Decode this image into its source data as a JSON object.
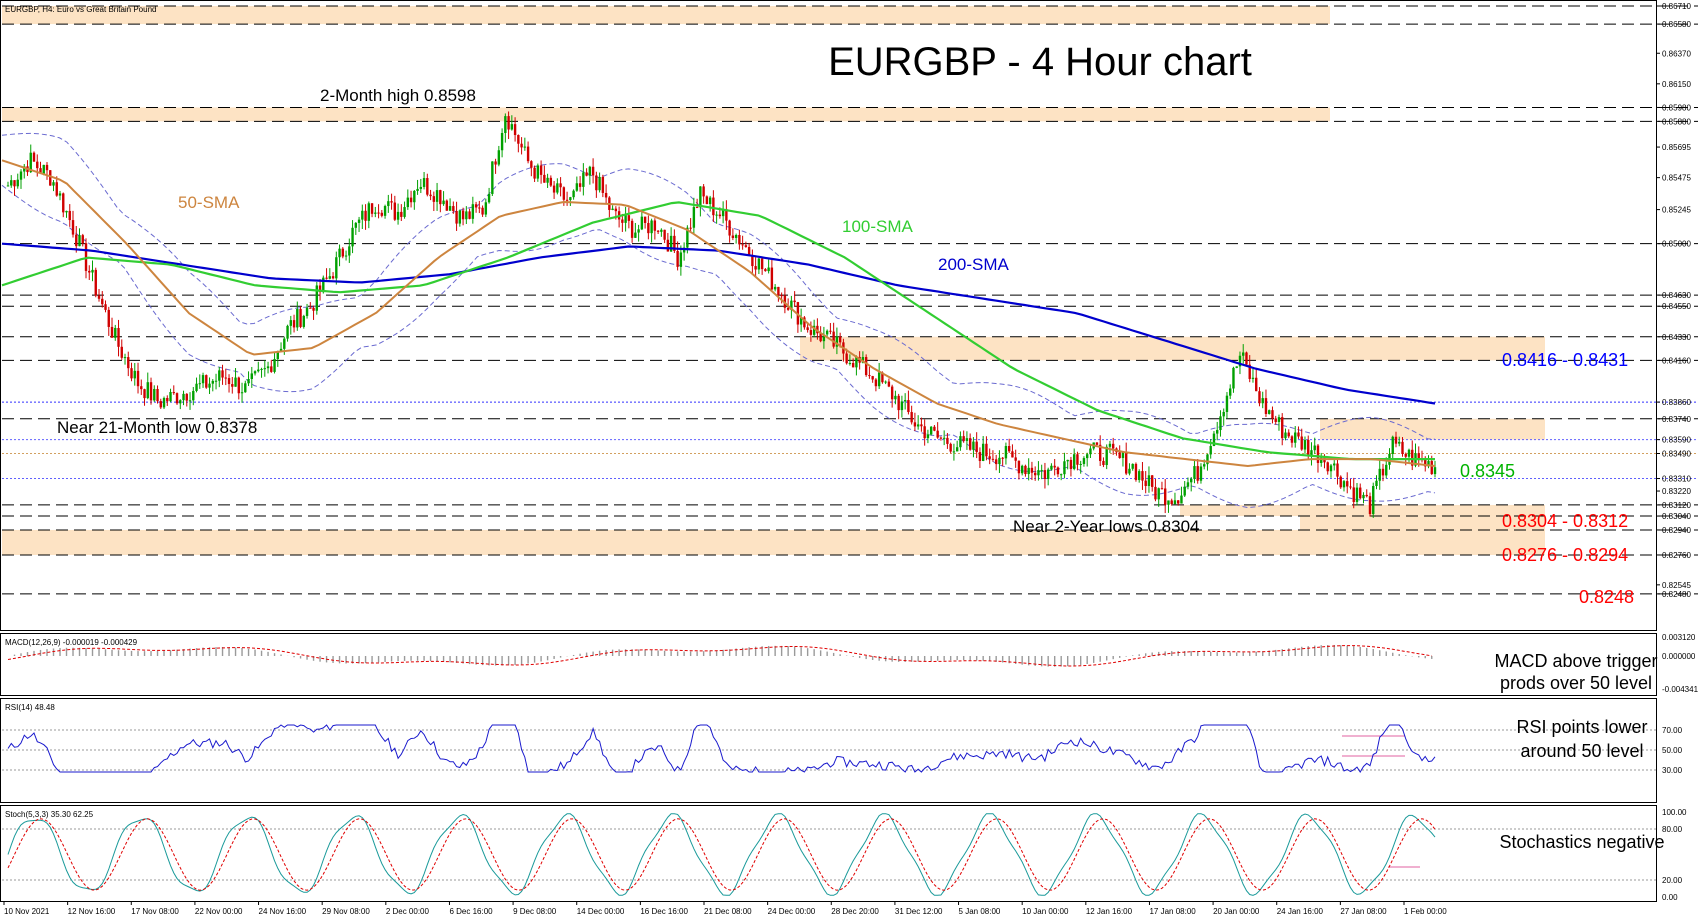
{
  "header": {
    "instrument_label": "EURGBP, H4:  Euro vs Great Britain Pound",
    "title": "EURGBP - 4 Hour chart"
  },
  "colors": {
    "zone_fill": "#fde3c4",
    "candle_up": "#00a000",
    "candle_down": "#d00000",
    "sma50": "#cd853f",
    "sma100": "#32cd32",
    "sma200": "#0000cd",
    "bollinger": "#6a6ad0",
    "accent_red": "#ff0000",
    "accent_blue": "#0000ff",
    "accent_green": "#00b300"
  },
  "annotations": {
    "high_label": "2-Month high 0.8598",
    "low21_label": "Near 21-Month low 0.8378",
    "low2y_label": "Near 2-Year lows 0.8304",
    "sma50_label": "50-SMA",
    "sma100_label": "100-SMA",
    "sma200_label": "200-SMA",
    "res_label": "0.8416 - 0.8431",
    "mid_label": "0.8345",
    "sup1_label": "0.8304 - 0.8312",
    "sup2_label": "0.8276 - 0.8294",
    "sup3_label": "0.8248"
  },
  "indicators": {
    "macd_label": "MACD(12,26,9) -0.000019 -0.000429",
    "macd_comment_1": "MACD above trigger",
    "macd_comment_2": "prods over 50 level",
    "rsi_label": "RSI(14) 48.48",
    "rsi_comment_1": "RSI points lower",
    "rsi_comment_2": "around 50 level",
    "stoch_label": "Stoch(5,3,3) 35.30 62.25",
    "stoch_comment": "Stochastics negative"
  },
  "price_axis": {
    "labels": [
      "0.86710",
      "0.86580",
      "0.86370",
      "0.86150",
      "0.85980",
      "0.85880",
      "0.85695",
      "0.85475",
      "0.85245",
      "0.85000",
      "0.84630",
      "0.84550",
      "0.84330",
      "0.84160",
      "0.83860",
      "0.83740",
      "0.83590",
      "0.83490",
      "0.83310",
      "0.83220",
      "0.83120",
      "0.83040",
      "0.82940",
      "0.82760",
      "0.82545",
      "0.82480"
    ]
  },
  "macd_axis": {
    "labels": [
      "0.003120",
      "0.000000",
      "-0.004341"
    ]
  },
  "rsi_axis": {
    "labels": [
      "70.00",
      "50.00",
      "30.00"
    ]
  },
  "stoch_axis": {
    "labels": [
      "100.00",
      "80.00",
      "20.00",
      "0.00"
    ]
  },
  "time_axis": {
    "labels": [
      "10 Nov 2021",
      "12 Nov 16:00",
      "17 Nov 08:00",
      "22 Nov 00:00",
      "24 Nov 16:00",
      "29 Nov 08:00",
      "2 Dec 00:00",
      "6 Dec 16:00",
      "9 Dec 08:00",
      "14 Dec 00:00",
      "16 Dec 16:00",
      "21 Dec 08:00",
      "24 Dec 00:00",
      "28 Dec 20:00",
      "31 Dec 12:00",
      "5 Jan 08:00",
      "10 Jan 00:00",
      "12 Jan 16:00",
      "17 Jan 08:00",
      "20 Jan 00:00",
      "24 Jan 16:00",
      "27 Jan 08:00",
      "1 Feb 00:00"
    ]
  },
  "chart_data": {
    "type": "candlestick",
    "timeframe": "H4",
    "y_range": [
      0.824,
      0.8671
    ],
    "key_levels": {
      "two_month_high": 0.8598,
      "resistance_zone": [
        0.8416,
        0.8431
      ],
      "pivot": 0.8345,
      "support_zone_1": [
        0.8304,
        0.8312
      ],
      "support_zone_2": [
        0.8276,
        0.8294
      ],
      "support_3": 0.8248,
      "near_21_month_low": 0.8378
    },
    "close_path": [
      0.8542,
      0.856,
      0.8548,
      0.8512,
      0.847,
      0.843,
      0.84,
      0.8386,
      0.8392,
      0.8398,
      0.8405,
      0.8395,
      0.841,
      0.844,
      0.8455,
      0.848,
      0.851,
      0.853,
      0.8522,
      0.8545,
      0.8535,
      0.8518,
      0.8525,
      0.8595,
      0.856,
      0.854,
      0.853,
      0.8552,
      0.852,
      0.851,
      0.8515,
      0.849,
      0.8535,
      0.852,
      0.85,
      0.848,
      0.846,
      0.844,
      0.843,
      0.8418,
      0.8405,
      0.839,
      0.837,
      0.836,
      0.8355,
      0.835,
      0.8348,
      0.834,
      0.8335,
      0.8345,
      0.835,
      0.8348,
      0.834,
      0.8322,
      0.8318,
      0.8335,
      0.8375,
      0.842,
      0.8385,
      0.8365,
      0.8355,
      0.8345,
      0.8325,
      0.8312,
      0.8355,
      0.8345,
      0.834
    ],
    "sma50": [
      0.856,
      0.8545,
      0.85,
      0.845,
      0.842,
      0.8425,
      0.845,
      0.849,
      0.852,
      0.853,
      0.8528,
      0.851,
      0.848,
      0.844,
      0.841,
      0.8385,
      0.837,
      0.836,
      0.835,
      0.8345,
      0.834,
      0.8345,
      0.8345,
      0.834
    ],
    "sma100": [
      0.847,
      0.849,
      0.8485,
      0.847,
      0.8465,
      0.847,
      0.849,
      0.8515,
      0.853,
      0.852,
      0.849,
      0.845,
      0.841,
      0.838,
      0.836,
      0.835,
      0.8345,
      0.8345
    ],
    "sma200": [
      0.85,
      0.8495,
      0.8485,
      0.8475,
      0.8472,
      0.8478,
      0.849,
      0.8498,
      0.8495,
      0.8485,
      0.847,
      0.846,
      0.845,
      0.843,
      0.841,
      0.8395,
      0.8385
    ],
    "macd": {
      "y_range": [
        -0.004341,
        0.00312
      ]
    },
    "rsi": {
      "value": 48.48,
      "levels": [
        70,
        50,
        30
      ]
    },
    "stochastic": {
      "k": 35.3,
      "d": 62.25,
      "levels": [
        80,
        20
      ]
    }
  }
}
